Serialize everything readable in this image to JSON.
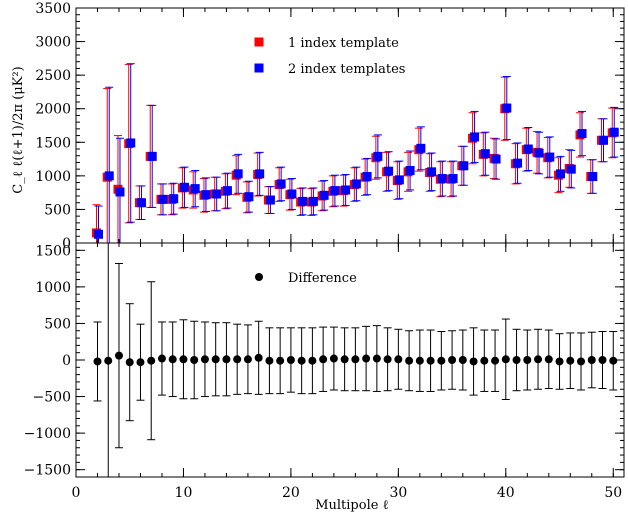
{
  "chart_data": [
    {
      "type": "scatter",
      "panel": "top",
      "ylabel": "C_ℓ ℓ(ℓ+1)/2π (μK²)",
      "xlim": [
        0,
        51
      ],
      "ylim": [
        0,
        3500
      ],
      "yticks": [
        0,
        500,
        1000,
        1500,
        2000,
        2500,
        3000,
        3500
      ],
      "ytick_labels": [
        "0",
        "500",
        "1000",
        "1500",
        "2000",
        "2500",
        "3000",
        "3500"
      ],
      "legend_position": "top-left",
      "series": [
        {
          "name": "1 index template",
          "color": "#ff0000",
          "marker": "square",
          "x": [
            2,
            3,
            4,
            5,
            6,
            7,
            8,
            9,
            10,
            11,
            12,
            13,
            14,
            15,
            16,
            17,
            18,
            19,
            20,
            21,
            22,
            23,
            24,
            25,
            26,
            27,
            28,
            29,
            30,
            31,
            32,
            33,
            34,
            35,
            36,
            37,
            38,
            39,
            40,
            41,
            42,
            43,
            44,
            45,
            46,
            47,
            48,
            49,
            50
          ],
          "y": [
            150,
            980,
            800,
            1480,
            600,
            1290,
            650,
            650,
            820,
            790,
            710,
            730,
            770,
            1010,
            680,
            1020,
            640,
            870,
            720,
            610,
            610,
            700,
            770,
            780,
            870,
            980,
            1270,
            1060,
            930,
            1060,
            1390,
            1050,
            950,
            950,
            1150,
            1560,
            1320,
            1260,
            2000,
            1180,
            1390,
            1350,
            1270,
            1010,
            1110,
            1610,
            990,
            1530,
            1640
          ],
          "err": [
            420,
            1320,
            800,
            1180,
            250,
            760,
            230,
            230,
            300,
            270,
            250,
            250,
            260,
            290,
            230,
            320,
            200,
            250,
            230,
            200,
            200,
            220,
            230,
            230,
            250,
            270,
            320,
            290,
            280,
            290,
            320,
            280,
            260,
            260,
            290,
            380,
            320,
            300,
            470,
            300,
            320,
            310,
            300,
            260,
            280,
            330,
            250,
            320,
            370
          ]
        },
        {
          "name": "2 index templates",
          "color": "#0000ff",
          "marker": "square",
          "x": [
            2,
            3,
            4,
            5,
            6,
            7,
            8,
            9,
            10,
            11,
            12,
            13,
            14,
            15,
            16,
            17,
            18,
            19,
            20,
            21,
            22,
            23,
            24,
            25,
            26,
            27,
            28,
            29,
            30,
            31,
            32,
            33,
            34,
            35,
            36,
            37,
            38,
            39,
            40,
            41,
            42,
            43,
            44,
            45,
            46,
            47,
            48,
            49,
            50
          ],
          "y": [
            130,
            1000,
            760,
            1490,
            600,
            1290,
            650,
            660,
            830,
            810,
            720,
            730,
            780,
            1030,
            690,
            1030,
            640,
            880,
            730,
            620,
            620,
            710,
            780,
            790,
            880,
            990,
            1290,
            1070,
            940,
            1080,
            1410,
            1060,
            960,
            960,
            1150,
            1580,
            1330,
            1250,
            2010,
            1190,
            1400,
            1340,
            1280,
            1030,
            1100,
            1630,
            990,
            1530,
            1650
          ],
          "err": [
            420,
            1320,
            800,
            1180,
            250,
            760,
            230,
            230,
            300,
            270,
            250,
            250,
            260,
            290,
            230,
            320,
            200,
            250,
            230,
            200,
            200,
            220,
            230,
            230,
            250,
            270,
            320,
            290,
            280,
            290,
            320,
            280,
            260,
            260,
            290,
            380,
            320,
            300,
            470,
            300,
            320,
            310,
            300,
            260,
            280,
            330,
            250,
            320,
            370
          ]
        }
      ]
    },
    {
      "type": "scatter",
      "panel": "bottom",
      "xlabel": "Multipole ℓ",
      "xlim": [
        0,
        51
      ],
      "ylim": [
        -1600,
        1600
      ],
      "xticks": [
        0,
        10,
        20,
        30,
        40,
        50
      ],
      "xtick_labels": [
        "0",
        "10",
        "20",
        "30",
        "40",
        "50"
      ],
      "yticks": [
        -1500,
        -1000,
        -500,
        0,
        500,
        1000,
        1500
      ],
      "ytick_labels": [
        "−1500",
        "−1000",
        "−500",
        "0",
        "500",
        "1000",
        "1500"
      ],
      "legend_position": "top-left",
      "series": [
        {
          "name": "Difference",
          "color": "#000000",
          "marker": "circle",
          "x": [
            2,
            3,
            4,
            5,
            6,
            7,
            8,
            9,
            10,
            11,
            12,
            13,
            14,
            15,
            16,
            17,
            18,
            19,
            20,
            21,
            22,
            23,
            24,
            25,
            26,
            27,
            28,
            29,
            30,
            31,
            32,
            33,
            34,
            35,
            36,
            37,
            38,
            39,
            40,
            41,
            42,
            43,
            44,
            45,
            46,
            47,
            48,
            49,
            50
          ],
          "y": [
            -20,
            -10,
            60,
            -30,
            -30,
            -10,
            20,
            10,
            10,
            0,
            10,
            10,
            10,
            10,
            10,
            30,
            -10,
            -10,
            0,
            -10,
            -10,
            10,
            20,
            10,
            10,
            20,
            20,
            10,
            10,
            -10,
            -10,
            -10,
            -10,
            0,
            0,
            -20,
            -10,
            -10,
            10,
            0,
            0,
            10,
            10,
            -20,
            -10,
            -20,
            0,
            0,
            -10
          ],
          "err": [
            540,
            1800,
            1260,
            800,
            520,
            1080,
            500,
            510,
            540,
            530,
            510,
            500,
            500,
            480,
            470,
            500,
            450,
            450,
            440,
            450,
            450,
            440,
            430,
            430,
            430,
            440,
            450,
            430,
            410,
            410,
            420,
            420,
            400,
            400,
            410,
            460,
            420,
            420,
            550,
            420,
            410,
            410,
            400,
            380,
            380,
            390,
            380,
            390,
            400
          ]
        }
      ]
    }
  ]
}
